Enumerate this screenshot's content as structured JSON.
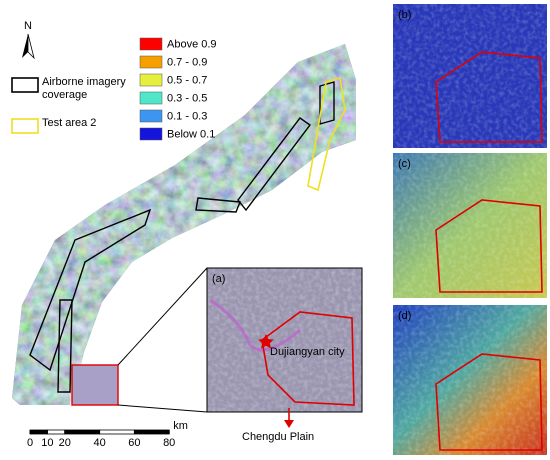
{
  "north_label": "N",
  "legend": {
    "coverage": [
      {
        "label": "Airborne imagery coverage",
        "color": "#000000"
      },
      {
        "label": "Test area 2",
        "color": "#f0e020"
      }
    ],
    "classes": [
      {
        "label": "Above 0.9",
        "color": "#ff0000"
      },
      {
        "label": "0.7 - 0.9",
        "color": "#f5a000"
      },
      {
        "label": "0.5 - 0.7",
        "color": "#e6f03c"
      },
      {
        "label": "0.3 - 0.5",
        "color": "#50e6c8"
      },
      {
        "label": "0.1 - 0.3",
        "color": "#3c96f0"
      },
      {
        "label": "Below 0.1",
        "color": "#1414dc"
      }
    ]
  },
  "panels": [
    "(a)",
    "(b)",
    "(c)",
    "(d)"
  ],
  "annotations": {
    "city": "Dujiangyan city",
    "plain": "Chengdu Plain"
  },
  "scale_bar": {
    "ticks": [
      0,
      10,
      20,
      40,
      60,
      80
    ],
    "unit": "km"
  }
}
